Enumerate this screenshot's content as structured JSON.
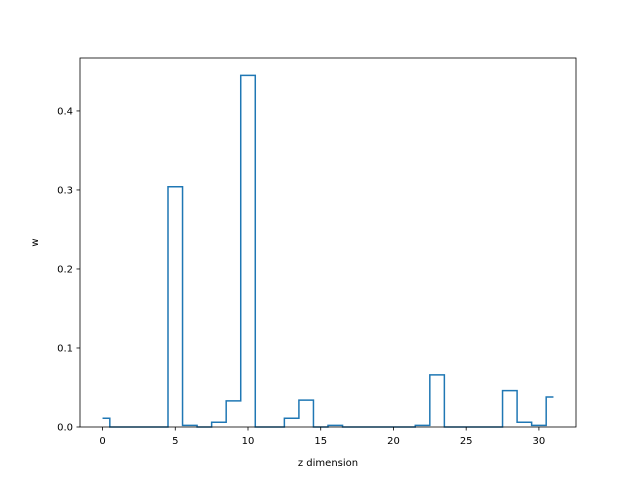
{
  "chart_data": {
    "type": "line",
    "drawstyle": "steps-mid",
    "title": "",
    "xlabel": "z dimension",
    "ylabel": "w",
    "xlim": [
      -1.55,
      32.55
    ],
    "ylim": [
      0,
      0.467
    ],
    "xticks": [
      0,
      5,
      10,
      15,
      20,
      25,
      30
    ],
    "yticks": [
      0.0,
      0.1,
      0.2,
      0.3,
      0.4
    ],
    "ytick_labels": [
      "0.0",
      "0.1",
      "0.2",
      "0.3",
      "0.4"
    ],
    "grid": false,
    "series": [
      {
        "color": "#1f77b4",
        "x": [
          0,
          1,
          2,
          3,
          4,
          5,
          6,
          7,
          8,
          9,
          10,
          11,
          12,
          13,
          14,
          15,
          16,
          17,
          18,
          19,
          20,
          21,
          22,
          23,
          24,
          25,
          26,
          27,
          28,
          29,
          30,
          31
        ],
        "y": [
          0.011,
          0.0,
          0.0,
          0.0,
          0.0,
          0.304,
          0.002,
          0.0,
          0.006,
          0.033,
          0.445,
          0.0,
          0.0,
          0.011,
          0.034,
          0.0,
          0.002,
          0.0,
          0.0,
          0.0,
          0.0,
          0.0,
          0.002,
          0.066,
          0.0,
          0.0,
          0.0,
          0.0,
          0.046,
          0.006,
          0.002,
          0.038
        ]
      }
    ]
  }
}
